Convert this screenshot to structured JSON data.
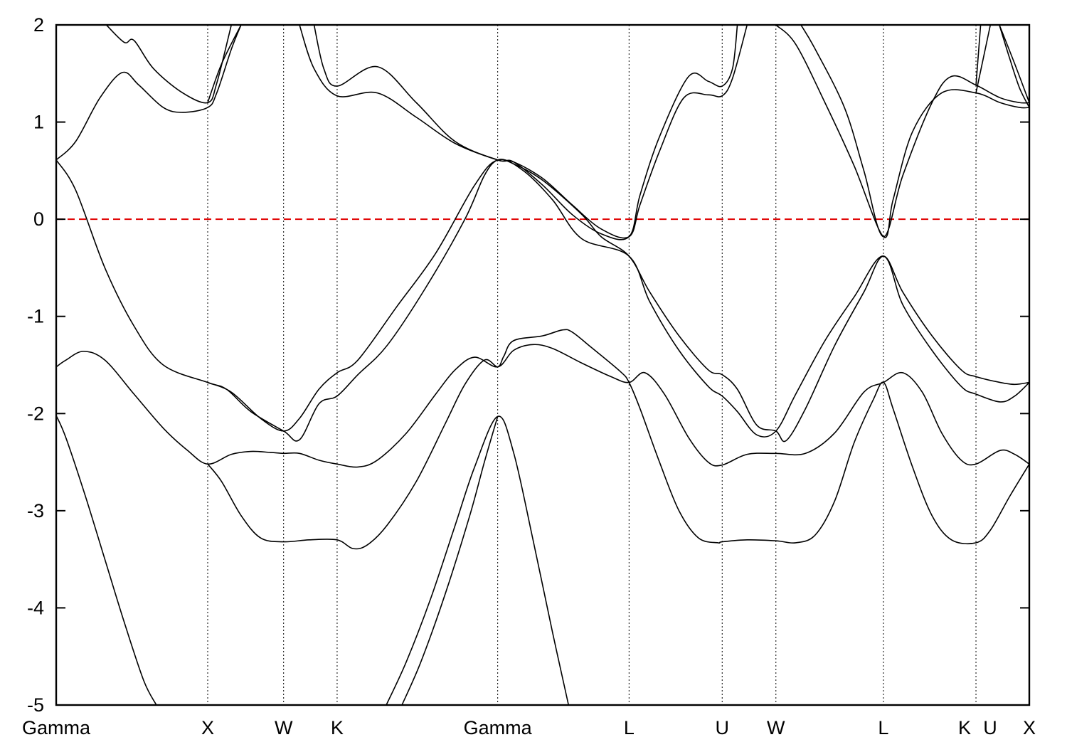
{
  "chart_data": {
    "type": "line",
    "title": "",
    "xlabel": "",
    "ylabel": "",
    "ylim": [
      -5,
      2
    ],
    "yticks": [
      2,
      1,
      0,
      -1,
      -2,
      -3,
      -4,
      -5
    ],
    "xlim": [
      0,
      1
    ],
    "grid": false,
    "legend": "none",
    "high_symmetry_points": [
      {
        "label": "Gamma",
        "x": 0.0
      },
      {
        "label": "X",
        "x": 0.1557
      },
      {
        "label": "W",
        "x": 0.2337
      },
      {
        "label": "K",
        "x": 0.2887
      },
      {
        "label": "Gamma",
        "x": 0.4537
      },
      {
        "label": "L",
        "x": 0.5887
      },
      {
        "label": "U",
        "x": 0.6844
      },
      {
        "label": "W",
        "x": 0.7396
      },
      {
        "label": "L",
        "x": 0.8501
      },
      {
        "label": "K",
        "x": 0.9452
      },
      {
        "label": "U",
        "x": 0.9452
      },
      {
        "label": "X",
        "x": 1.0
      }
    ],
    "fermi_level": {
      "y": 0,
      "color": "#e00000",
      "style": "dashed"
    },
    "band_color": "#000000",
    "series": [
      {
        "values": [
          [
            0,
            -2.02
          ],
          [
            0.01,
            -2.25
          ],
          [
            0.03,
            -2.85
          ],
          [
            0.05,
            -3.5
          ],
          [
            0.07,
            -4.15
          ],
          [
            0.09,
            -4.75
          ],
          [
            0.103,
            -5.0
          ]
        ]
      },
      {
        "values": [
          [
            0.3392,
            -5.0
          ],
          [
            0.36,
            -4.55
          ],
          [
            0.385,
            -3.9
          ],
          [
            0.41,
            -3.15
          ],
          [
            0.43,
            -2.55
          ],
          [
            0.4537,
            -2.03
          ],
          [
            0.47,
            -2.4
          ],
          [
            0.49,
            -3.3
          ],
          [
            0.51,
            -4.25
          ],
          [
            0.5265,
            -5.0
          ]
        ]
      },
      {
        "values": [
          [
            0.3553,
            -5.0
          ],
          [
            0.375,
            -4.55
          ],
          [
            0.4,
            -3.85
          ],
          [
            0.425,
            -3.05
          ],
          [
            0.44,
            -2.5
          ],
          [
            0.4537,
            -2.03
          ]
        ]
      },
      {
        "values": [
          [
            0,
            -1.52
          ],
          [
            0.01,
            -1.45
          ],
          [
            0.028,
            -1.36
          ],
          [
            0.05,
            -1.45
          ],
          [
            0.08,
            -1.8
          ],
          [
            0.11,
            -2.15
          ],
          [
            0.135,
            -2.38
          ],
          [
            0.1557,
            -2.52
          ],
          [
            0.18,
            -2.42
          ],
          [
            0.2,
            -2.39
          ],
          [
            0.22,
            -2.4
          ],
          [
            0.2337,
            -2.41
          ],
          [
            0.25,
            -2.41
          ],
          [
            0.27,
            -2.48
          ],
          [
            0.2887,
            -2.52
          ],
          [
            0.31,
            -2.55
          ],
          [
            0.33,
            -2.48
          ],
          [
            0.36,
            -2.2
          ],
          [
            0.39,
            -1.8
          ],
          [
            0.41,
            -1.55
          ],
          [
            0.43,
            -1.42
          ],
          [
            0.4537,
            -1.52
          ],
          [
            0.47,
            -1.35
          ],
          [
            0.49,
            -1.29
          ],
          [
            0.51,
            -1.33
          ],
          [
            0.54,
            -1.48
          ],
          [
            0.57,
            -1.62
          ],
          [
            0.5887,
            -1.68
          ],
          [
            0.605,
            -1.58
          ],
          [
            0.625,
            -1.8
          ],
          [
            0.65,
            -2.25
          ],
          [
            0.67,
            -2.5
          ],
          [
            0.6844,
            -2.53
          ],
          [
            0.71,
            -2.42
          ],
          [
            0.7396,
            -2.41
          ],
          [
            0.77,
            -2.41
          ],
          [
            0.8,
            -2.2
          ],
          [
            0.83,
            -1.78
          ],
          [
            0.8501,
            -1.68
          ],
          [
            0.87,
            -1.58
          ],
          [
            0.89,
            -1.78
          ],
          [
            0.91,
            -2.2
          ],
          [
            0.93,
            -2.48
          ],
          [
            0.9452,
            -2.52
          ],
          [
            0.97,
            -2.38
          ],
          [
            0.985,
            -2.42
          ],
          [
            1.0,
            -2.52
          ]
        ]
      },
      {
        "values": [
          [
            0.1557,
            -2.52
          ],
          [
            0.17,
            -2.7
          ],
          [
            0.19,
            -3.05
          ],
          [
            0.21,
            -3.28
          ],
          [
            0.2337,
            -3.32
          ],
          [
            0.26,
            -3.3
          ],
          [
            0.2887,
            -3.3
          ],
          [
            0.305,
            -3.39
          ],
          [
            0.32,
            -3.35
          ],
          [
            0.34,
            -3.15
          ],
          [
            0.37,
            -2.7
          ],
          [
            0.4,
            -2.1
          ],
          [
            0.42,
            -1.7
          ],
          [
            0.44,
            -1.45
          ],
          [
            0.4537,
            -1.52
          ],
          [
            0.46,
            -1.41
          ],
          [
            0.47,
            -1.25
          ],
          [
            0.5,
            -1.2
          ],
          [
            0.52,
            -1.14
          ],
          [
            0.53,
            -1.16
          ],
          [
            0.55,
            -1.32
          ],
          [
            0.58,
            -1.57
          ],
          [
            0.5887,
            -1.68
          ],
          [
            0.6,
            -1.95
          ],
          [
            0.62,
            -2.5
          ],
          [
            0.64,
            -3.0
          ],
          [
            0.66,
            -3.28
          ],
          [
            0.68,
            -3.33
          ],
          [
            0.6844,
            -3.32
          ],
          [
            0.71,
            -3.3
          ],
          [
            0.74,
            -3.31
          ],
          [
            0.76,
            -3.33
          ],
          [
            0.78,
            -3.25
          ],
          [
            0.8,
            -2.9
          ],
          [
            0.82,
            -2.3
          ],
          [
            0.84,
            -1.85
          ],
          [
            0.8501,
            -1.68
          ],
          [
            0.86,
            -1.95
          ],
          [
            0.88,
            -2.55
          ],
          [
            0.9,
            -3.05
          ],
          [
            0.92,
            -3.3
          ],
          [
            0.9452,
            -3.33
          ],
          [
            0.96,
            -3.2
          ],
          [
            0.98,
            -2.85
          ],
          [
            1.0,
            -2.52
          ]
        ]
      },
      {
        "values": [
          [
            0,
            0.61
          ],
          [
            0.02,
            0.3
          ],
          [
            0.05,
            -0.5
          ],
          [
            0.08,
            -1.1
          ],
          [
            0.11,
            -1.5
          ],
          [
            0.1557,
            -1.68
          ],
          [
            0.175,
            -1.75
          ],
          [
            0.2,
            -1.98
          ],
          [
            0.2337,
            -2.18
          ],
          [
            0.25,
            -2.27
          ],
          [
            0.27,
            -1.9
          ],
          [
            0.2887,
            -1.82
          ],
          [
            0.31,
            -1.6
          ],
          [
            0.34,
            -1.3
          ],
          [
            0.38,
            -0.7
          ],
          [
            0.42,
            0.0
          ],
          [
            0.44,
            0.45
          ],
          [
            0.4537,
            0.61
          ],
          [
            0.47,
            0.57
          ],
          [
            0.5,
            0.4
          ],
          [
            0.54,
            0.05
          ],
          [
            0.56,
            -0.18
          ],
          [
            0.5887,
            -0.38
          ],
          [
            0.61,
            -0.75
          ],
          [
            0.64,
            -1.2
          ],
          [
            0.67,
            -1.55
          ],
          [
            0.6844,
            -1.6
          ],
          [
            0.7,
            -1.75
          ],
          [
            0.72,
            -2.12
          ],
          [
            0.7396,
            -2.18
          ],
          [
            0.75,
            -2.28
          ],
          [
            0.77,
            -1.95
          ],
          [
            0.8,
            -1.3
          ],
          [
            0.83,
            -0.75
          ],
          [
            0.8501,
            -0.38
          ],
          [
            0.87,
            -0.75
          ],
          [
            0.9,
            -1.2
          ],
          [
            0.93,
            -1.55
          ],
          [
            0.9452,
            -1.62
          ],
          [
            0.97,
            -1.68
          ],
          [
            0.985,
            -1.7
          ],
          [
            1.0,
            -1.68
          ]
        ]
      },
      {
        "values": [
          [
            0.1557,
            -1.68
          ],
          [
            0.18,
            -1.78
          ],
          [
            0.21,
            -2.05
          ],
          [
            0.2337,
            -2.18
          ],
          [
            0.25,
            -2.05
          ],
          [
            0.27,
            -1.75
          ],
          [
            0.2887,
            -1.58
          ],
          [
            0.31,
            -1.45
          ],
          [
            0.35,
            -0.9
          ],
          [
            0.39,
            -0.35
          ],
          [
            0.43,
            0.35
          ],
          [
            0.4537,
            0.61
          ],
          [
            0.48,
            0.5
          ],
          [
            0.51,
            0.2
          ],
          [
            0.54,
            -0.2
          ],
          [
            0.5887,
            -0.38
          ],
          [
            0.61,
            -0.85
          ],
          [
            0.64,
            -1.35
          ],
          [
            0.67,
            -1.72
          ],
          [
            0.6844,
            -1.82
          ],
          [
            0.7,
            -1.98
          ],
          [
            0.72,
            -2.22
          ],
          [
            0.7396,
            -2.18
          ],
          [
            0.76,
            -1.8
          ],
          [
            0.79,
            -1.25
          ],
          [
            0.82,
            -0.8
          ],
          [
            0.8501,
            -0.38
          ],
          [
            0.87,
            -0.88
          ],
          [
            0.9,
            -1.35
          ],
          [
            0.93,
            -1.72
          ],
          [
            0.9452,
            -1.8
          ],
          [
            0.97,
            -1.88
          ],
          [
            0.985,
            -1.82
          ],
          [
            1.0,
            -1.68
          ]
        ]
      },
      {
        "values": [
          [
            0,
            0.61
          ],
          [
            0.02,
            0.8
          ],
          [
            0.045,
            1.25
          ],
          [
            0.068,
            1.51
          ],
          [
            0.085,
            1.38
          ],
          [
            0.11,
            1.15
          ],
          [
            0.13,
            1.1
          ],
          [
            0.1557,
            1.15
          ],
          [
            0.165,
            1.3
          ],
          [
            0.18,
            1.75
          ],
          [
            0.19,
            2.0
          ]
        ]
      },
      {
        "values": [
          [
            0.0515,
            2.0
          ],
          [
            0.07,
            1.82
          ],
          [
            0.08,
            1.84
          ],
          [
            0.1,
            1.55
          ],
          [
            0.13,
            1.3
          ],
          [
            0.1557,
            1.2
          ],
          [
            0.165,
            1.4
          ],
          [
            0.18,
            2.0
          ]
        ]
      },
      {
        "values": [
          [
            0.1557,
            1.2
          ],
          [
            0.17,
            1.6
          ],
          [
            0.19,
            2.0
          ]
        ]
      },
      {
        "values": [
          [
            0.25,
            2.0
          ],
          [
            0.265,
            1.55
          ],
          [
            0.2887,
            1.27
          ],
          [
            0.33,
            1.3
          ],
          [
            0.37,
            1.05
          ],
          [
            0.41,
            0.78
          ],
          [
            0.4537,
            0.61
          ],
          [
            0.47,
            0.59
          ],
          [
            0.5,
            0.42
          ],
          [
            0.53,
            0.15
          ],
          [
            0.56,
            -0.1
          ],
          [
            0.5887,
            -0.18
          ],
          [
            0.6,
            0.15
          ],
          [
            0.62,
            0.7
          ],
          [
            0.645,
            1.25
          ],
          [
            0.67,
            1.28
          ],
          [
            0.6844,
            1.27
          ],
          [
            0.695,
            1.45
          ],
          [
            0.71,
            2.0
          ]
        ]
      },
      {
        "values": [
          [
            0.265,
            2.0
          ],
          [
            0.275,
            1.55
          ],
          [
            0.2887,
            1.37
          ],
          [
            0.33,
            1.57
          ],
          [
            0.37,
            1.2
          ],
          [
            0.41,
            0.8
          ],
          [
            0.4537,
            0.61
          ],
          [
            0.47,
            0.59
          ],
          [
            0.5,
            0.35
          ],
          [
            0.53,
            0.05
          ],
          [
            0.56,
            -0.15
          ],
          [
            0.5887,
            -0.18
          ],
          [
            0.6,
            0.25
          ],
          [
            0.62,
            0.85
          ],
          [
            0.65,
            1.47
          ],
          [
            0.67,
            1.42
          ],
          [
            0.6844,
            1.37
          ],
          [
            0.695,
            1.55
          ],
          [
            0.7,
            2.0
          ]
        ]
      },
      {
        "values": [
          [
            0.7396,
            2.0
          ],
          [
            0.76,
            1.8
          ],
          [
            0.79,
            1.2
          ],
          [
            0.82,
            0.55
          ],
          [
            0.8501,
            -0.18
          ],
          [
            0.86,
            0.2
          ],
          [
            0.88,
            0.9
          ],
          [
            0.91,
            1.3
          ],
          [
            0.9452,
            1.3
          ],
          [
            0.97,
            1.2
          ],
          [
            0.99,
            1.15
          ],
          [
            1.0,
            1.15
          ]
        ]
      },
      {
        "values": [
          [
            0.7653,
            2.0
          ],
          [
            0.78,
            1.75
          ],
          [
            0.81,
            1.15
          ],
          [
            0.83,
            0.5
          ],
          [
            0.8501,
            -0.18
          ],
          [
            0.87,
            0.45
          ],
          [
            0.9,
            1.2
          ],
          [
            0.92,
            1.47
          ],
          [
            0.9452,
            1.38
          ],
          [
            0.97,
            1.25
          ],
          [
            0.99,
            1.2
          ],
          [
            1.0,
            1.2
          ]
        ]
      },
      {
        "values": [
          [
            0.9452,
            1.3
          ],
          [
            0.96,
            2.0
          ]
        ]
      },
      {
        "values": [
          [
            0.9452,
            1.38
          ],
          [
            0.95,
            2.0
          ]
        ]
      },
      {
        "values": [
          [
            0.9692,
            2.0
          ],
          [
            0.98,
            1.65
          ],
          [
            0.99,
            1.35
          ],
          [
            1.0,
            1.15
          ]
        ]
      },
      {
        "values": [
          [
            0.9692,
            2.0
          ],
          [
            0.985,
            1.6
          ],
          [
            1.0,
            1.2
          ]
        ]
      }
    ]
  }
}
